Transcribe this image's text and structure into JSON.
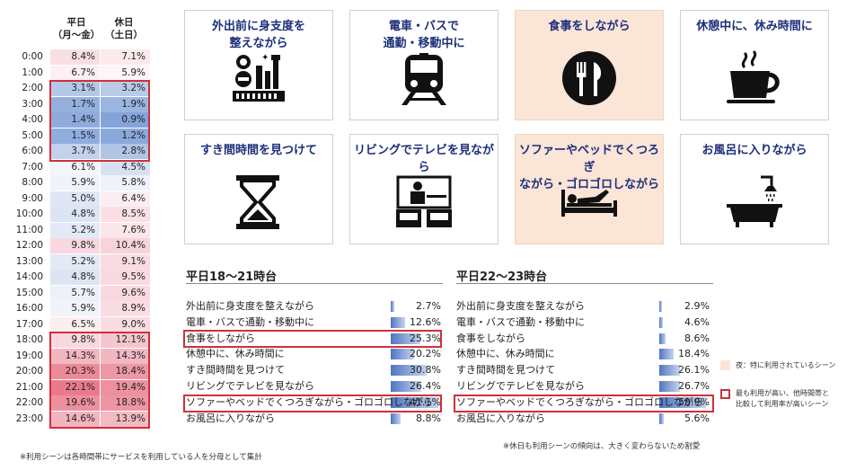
{
  "hourly": {
    "headers": {
      "weekday": "平日",
      "weekday_sub": "（月～金）",
      "weekend": "休日",
      "weekend_sub": "（土日）"
    },
    "rows": [
      {
        "hour": "0:00",
        "weekday": "8.4%",
        "weekend": "7.1%",
        "wd_color": "#f9dfe4",
        "we_color": "#fbe9ec"
      },
      {
        "hour": "1:00",
        "weekday": "6.7%",
        "weekend": "5.9%",
        "wd_color": "#fcf0f2",
        "we_color": "#fdf5f6"
      },
      {
        "hour": "2:00",
        "weekday": "3.1%",
        "weekend": "3.2%",
        "wd_color": "#b5c8e8",
        "we_color": "#b9cbe9"
      },
      {
        "hour": "3:00",
        "weekday": "1.7%",
        "weekend": "1.9%",
        "wd_color": "#93b0de",
        "we_color": "#9ab5e0"
      },
      {
        "hour": "4:00",
        "weekday": "1.4%",
        "weekend": "0.9%",
        "wd_color": "#8eabdc",
        "we_color": "#84a4d9"
      },
      {
        "hour": "5:00",
        "weekday": "1.5%",
        "weekend": "1.2%",
        "wd_color": "#8fadde",
        "we_color": "#8aa9db"
      },
      {
        "hour": "6:00",
        "weekday": "3.7%",
        "weekend": "2.8%",
        "wd_color": "#c3d2ec",
        "we_color": "#b0c4e6"
      },
      {
        "hour": "7:00",
        "weekday": "6.1%",
        "weekend": "4.5%",
        "wd_color": "#f3f6fb",
        "we_color": "#d6e1f2"
      },
      {
        "hour": "8:00",
        "weekday": "5.9%",
        "weekend": "5.8%",
        "wd_color": "#f0f4fa",
        "we_color": "#eef2f9"
      },
      {
        "hour": "9:00",
        "weekday": "5.0%",
        "weekend": "6.4%",
        "wd_color": "#dfe7f5",
        "we_color": "#fbeef1"
      },
      {
        "hour": "10:00",
        "weekday": "4.8%",
        "weekend": "8.5%",
        "wd_color": "#dce5f4",
        "we_color": "#fae0e5"
      },
      {
        "hour": "11:00",
        "weekday": "5.2%",
        "weekend": "7.6%",
        "wd_color": "#e3eaf6",
        "we_color": "#fbe6ea"
      },
      {
        "hour": "12:00",
        "weekday": "9.8%",
        "weekend": "10.4%",
        "wd_color": "#f8d8de",
        "we_color": "#f7d3da"
      },
      {
        "hour": "13:00",
        "weekday": "5.2%",
        "weekend": "9.1%",
        "wd_color": "#e3eaf6",
        "we_color": "#f9dce2"
      },
      {
        "hour": "14:00",
        "weekday": "4.8%",
        "weekend": "9.5%",
        "wd_color": "#dce5f4",
        "we_color": "#f9dae0"
      },
      {
        "hour": "15:00",
        "weekday": "5.7%",
        "weekend": "9.6%",
        "wd_color": "#edf1f9",
        "we_color": "#f9d9df"
      },
      {
        "hour": "16:00",
        "weekday": "5.9%",
        "weekend": "8.9%",
        "wd_color": "#f0f4fa",
        "we_color": "#f9dde3"
      },
      {
        "hour": "17:00",
        "weekday": "6.5%",
        "weekend": "9.0%",
        "wd_color": "#fbeff2",
        "we_color": "#f9dce2"
      },
      {
        "hour": "18:00",
        "weekday": "9.8%",
        "weekend": "12.1%",
        "wd_color": "#f8d8de",
        "we_color": "#f5c6cf"
      },
      {
        "hour": "19:00",
        "weekday": "14.3%",
        "weekend": "14.3%",
        "wd_color": "#f3b7c2",
        "we_color": "#f3b7c2"
      },
      {
        "hour": "20:00",
        "weekday": "20.3%",
        "weekend": "18.4%",
        "wd_color": "#ec8a99",
        "we_color": "#ee98a6"
      },
      {
        "hour": "21:00",
        "weekday": "22.1%",
        "weekend": "19.4%",
        "wd_color": "#ea7a8b",
        "we_color": "#ed909f"
      },
      {
        "hour": "22:00",
        "weekday": "19.6%",
        "weekend": "18.8%",
        "wd_color": "#ed8f9e",
        "we_color": "#ee95a3"
      },
      {
        "hour": "23:00",
        "weekday": "14.6%",
        "weekend": "13.9%",
        "wd_color": "#f3b4c0",
        "we_color": "#f3bac4"
      }
    ]
  },
  "scenes": [
    {
      "title": "外出前に身支度を\n整えながら",
      "icon": "makeup-icon",
      "highlight": false
    },
    {
      "title": "電車・バスで\n通勤・移動中に",
      "icon": "train-icon",
      "highlight": false
    },
    {
      "title": "食事をしながら",
      "icon": "dining-icon",
      "highlight": true
    },
    {
      "title": "休憩中に、休み時間に",
      "icon": "coffee-cup-icon",
      "highlight": false
    },
    {
      "title": "すき間時間を見つけて",
      "icon": "hourglass-icon",
      "highlight": false
    },
    {
      "title": "リビングでテレビを見ながら",
      "icon": "tv-living-icon",
      "highlight": false
    },
    {
      "title": "ソファーやベッドでくつろぎ\nながら・ゴロゴロしながら",
      "icon": "bed-lying-icon",
      "highlight": true
    },
    {
      "title": "お風呂に入りながら",
      "icon": "bathtub-icon",
      "highlight": false
    }
  ],
  "usage_1821": {
    "title": "平日18～21時台",
    "items": [
      {
        "label": "外出前に身支度を整えながら",
        "value": 2.7,
        "text": "2.7%"
      },
      {
        "label": "電車・バスで通勤・移動中に",
        "value": 12.6,
        "text": "12.6%"
      },
      {
        "label": "食事をしながら",
        "value": 25.3,
        "text": "25.3%"
      },
      {
        "label": "休憩中に、休み時間に",
        "value": 20.2,
        "text": "20.2%"
      },
      {
        "label": "すき間時間を見つけて",
        "value": 30.8,
        "text": "30.8%"
      },
      {
        "label": "リビングでテレビを見ながら",
        "value": 26.4,
        "text": "26.4%"
      },
      {
        "label": "ソファーやベッドでくつろぎながら・ゴロゴロしながら",
        "value": 41.1,
        "text": "41.1%"
      },
      {
        "label": "お風呂に入りながら",
        "value": 8.8,
        "text": "8.8%"
      }
    ]
  },
  "usage_2223": {
    "title": "平日22～23時台",
    "items": [
      {
        "label": "外出前に身支度を整えながら",
        "value": 2.9,
        "text": "2.9%"
      },
      {
        "label": "電車・バスで通勤・移動中に",
        "value": 4.6,
        "text": "4.6%"
      },
      {
        "label": "食事をしながら",
        "value": 8.6,
        "text": "8.6%"
      },
      {
        "label": "休憩中に、休み時間に",
        "value": 18.4,
        "text": "18.4%"
      },
      {
        "label": "すき間時間を見つけて",
        "value": 26.1,
        "text": "26.1%"
      },
      {
        "label": "リビングでテレビを見ながら",
        "value": 26.7,
        "text": "26.7%"
      },
      {
        "label": "ソファーやベッドでくつろぎながら・ゴロゴロしながら",
        "value": 59.9,
        "text": "59.9%"
      },
      {
        "label": "お風呂に入りながら",
        "value": 5.6,
        "text": "5.6%"
      }
    ]
  },
  "legend": {
    "night": "夜：特に利用されているシーン",
    "red_line1": "最も利用が高い、他時間帯と",
    "red_line2": "比較して利用率が高いシーン"
  },
  "footnotes": {
    "left": "※利用シーンは各時間帯にサービスを利用している人を分母として集計",
    "right": "※休日も利用シーンの傾向は、大きく変わらないため割愛"
  }
}
